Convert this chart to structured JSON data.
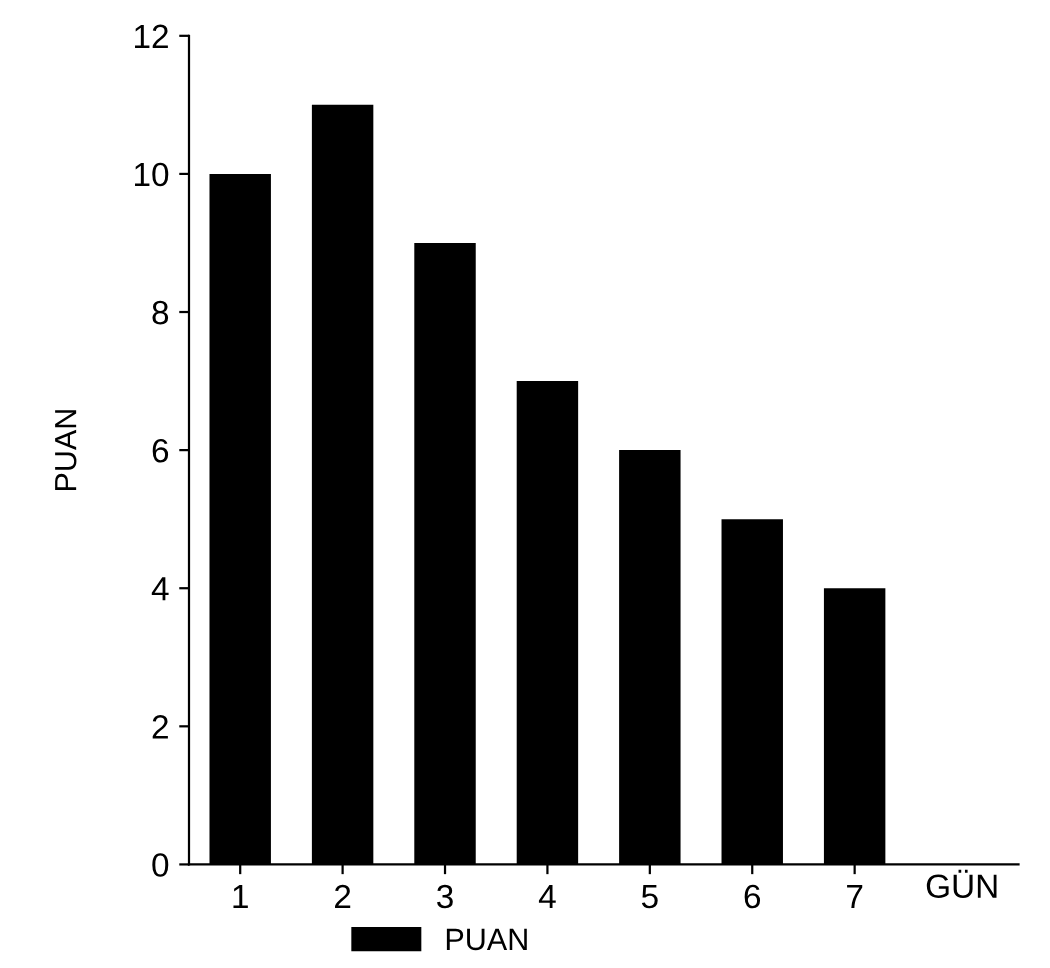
{
  "chart_data": {
    "type": "bar",
    "xlabel": "GÜN",
    "ylabel": "PUAN",
    "categories": [
      "1",
      "2",
      "3",
      "4",
      "5",
      "6",
      "7"
    ],
    "series": [
      {
        "name": "PUAN",
        "color": "#000000",
        "values": [
          10,
          11,
          9,
          7,
          6,
          5,
          4
        ]
      }
    ],
    "ylim": [
      0,
      12
    ],
    "yticks": [
      0,
      2,
      4,
      6,
      8,
      10,
      12
    ],
    "grid": false,
    "legend": "bottom"
  }
}
